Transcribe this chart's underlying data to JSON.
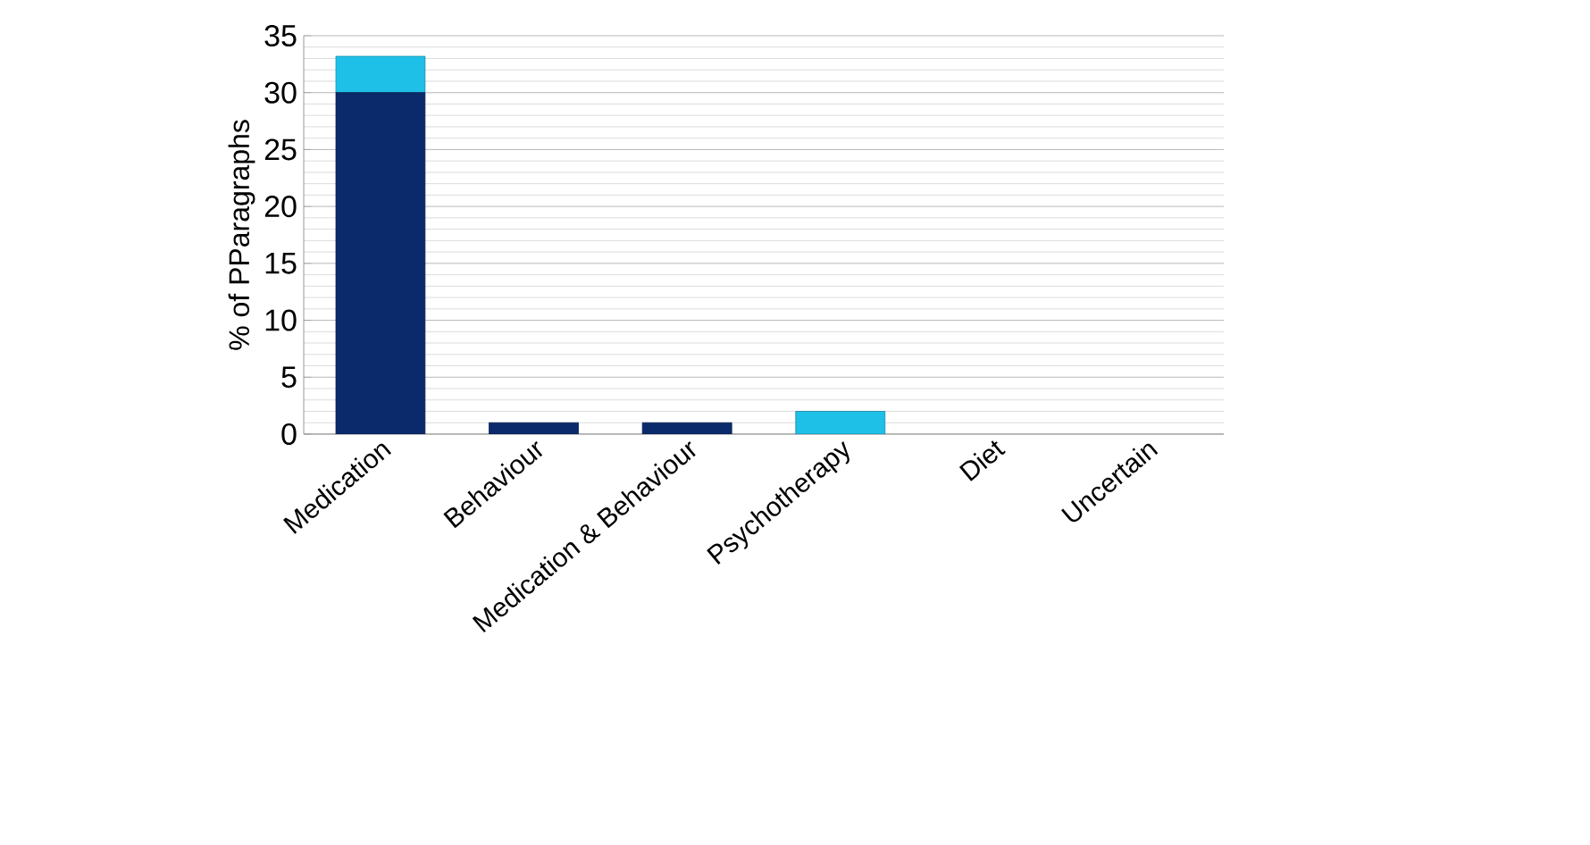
{
  "chart_data": {
    "type": "bar",
    "stacked": true,
    "ylabel": "% of PParagraphs",
    "categories": [
      "Medication",
      "Behaviour",
      "Medication & Behaviour",
      "Psychotherapy",
      "Diet",
      "Uncertain"
    ],
    "series": [
      {
        "color": "#0b2a6b",
        "values": [
          30,
          1,
          1,
          0,
          0,
          0
        ]
      },
      {
        "color": "#1ec0e8",
        "values": [
          3.2,
          0,
          0,
          2,
          0,
          0
        ]
      }
    ],
    "ylim": [
      0,
      35
    ],
    "yticks": [
      0,
      5,
      10,
      15,
      20,
      25,
      30,
      35
    ],
    "grid": "y"
  }
}
